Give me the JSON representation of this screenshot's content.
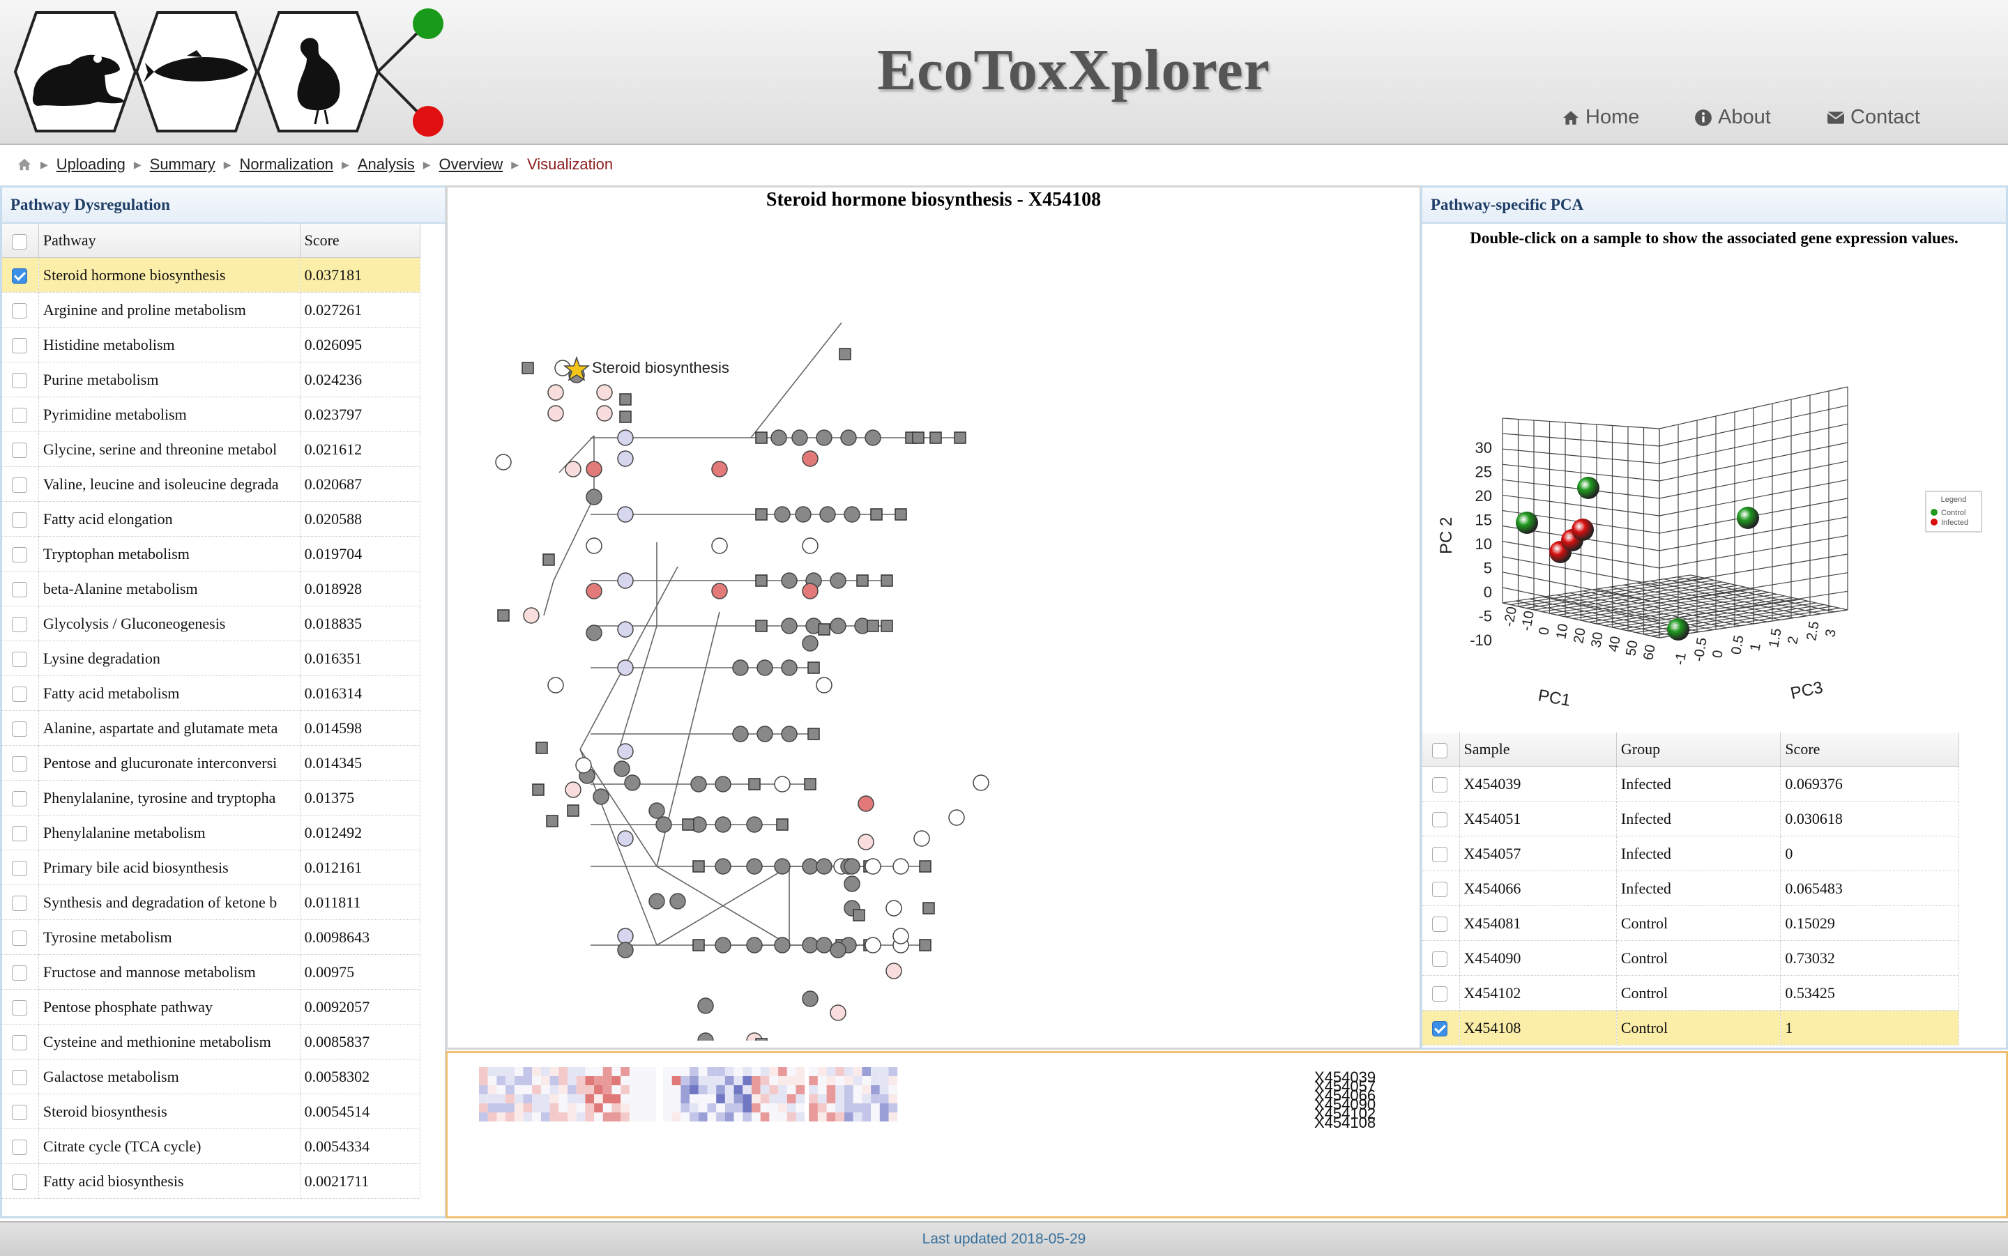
{
  "app": {
    "title": "EcoToxXplorer"
  },
  "nav": {
    "home": "Home",
    "about": "About",
    "contact": "Contact"
  },
  "breadcrumbs": [
    "Uploading",
    "Summary",
    "Normalization",
    "Analysis",
    "Overview",
    "Visualization"
  ],
  "pathway_panel": {
    "title": "Pathway Dysregulation",
    "columns": [
      "Pathway",
      "Score"
    ],
    "rows": [
      {
        "name": "Steroid hormone biosynthesis",
        "score": "0.037181",
        "selected": true
      },
      {
        "name": "Arginine and proline metabolism",
        "score": "0.027261"
      },
      {
        "name": "Histidine metabolism",
        "score": "0.026095"
      },
      {
        "name": "Purine metabolism",
        "score": "0.024236"
      },
      {
        "name": "Pyrimidine metabolism",
        "score": "0.023797"
      },
      {
        "name": "Glycine, serine and threonine metabol",
        "score": "0.021612"
      },
      {
        "name": "Valine, leucine and isoleucine degrada",
        "score": "0.020687"
      },
      {
        "name": "Fatty acid elongation",
        "score": "0.020588"
      },
      {
        "name": "Tryptophan metabolism",
        "score": "0.019704"
      },
      {
        "name": "beta-Alanine metabolism",
        "score": "0.018928"
      },
      {
        "name": "Glycolysis / Gluconeogenesis",
        "score": "0.018835"
      },
      {
        "name": "Lysine degradation",
        "score": "0.016351"
      },
      {
        "name": "Fatty acid metabolism",
        "score": "0.016314"
      },
      {
        "name": "Alanine, aspartate and glutamate meta",
        "score": "0.014598"
      },
      {
        "name": "Pentose and glucuronate interconversi",
        "score": "0.014345"
      },
      {
        "name": "Phenylalanine, tyrosine and tryptopha",
        "score": "0.01375"
      },
      {
        "name": "Phenylalanine metabolism",
        "score": "0.012492"
      },
      {
        "name": "Primary bile acid biosynthesis",
        "score": "0.012161"
      },
      {
        "name": "Synthesis and degradation of ketone b",
        "score": "0.011811"
      },
      {
        "name": "Tyrosine metabolism",
        "score": "0.0098643"
      },
      {
        "name": "Fructose and mannose metabolism",
        "score": "0.00975"
      },
      {
        "name": "Pentose phosphate pathway",
        "score": "0.0092057"
      },
      {
        "name": "Cysteine and methionine metabolism",
        "score": "0.0085837"
      },
      {
        "name": "Galactose metabolism",
        "score": "0.0058302"
      },
      {
        "name": "Steroid biosynthesis",
        "score": "0.0054514"
      },
      {
        "name": "Citrate cycle (TCA cycle)",
        "score": "0.0054334"
      },
      {
        "name": "Fatty acid biosynthesis",
        "score": "0.0021711"
      }
    ]
  },
  "network": {
    "title": "Steroid hormone biosynthesis - X454108",
    "annotation": "Steroid biosynthesis"
  },
  "pca": {
    "title": "Pathway-specific PCA",
    "hint": "Double-click on a sample to show the associated gene expression values.",
    "axis_labels": {
      "x": "PC1",
      "y": "PC 2",
      "z": "PC3"
    },
    "ticks_pc2": [
      "30",
      "25",
      "20",
      "15",
      "10",
      "5",
      "0",
      "-5",
      "-10"
    ],
    "ticks_pc1": [
      "-20",
      "-10",
      "0",
      "10",
      "20",
      "30",
      "40",
      "50",
      "60"
    ],
    "ticks_pc3": [
      "-1",
      "-0.5",
      "0",
      "0.5",
      "1",
      "1.5",
      "2",
      "2.5",
      "3"
    ],
    "legend": {
      "title": "Legend",
      "items": [
        "Control",
        "Infected"
      ]
    },
    "colors": {
      "control": "#1f9a1f",
      "infected": "#d81010"
    }
  },
  "sample_table": {
    "columns": [
      "Sample",
      "Group",
      "Score"
    ],
    "rows": [
      {
        "sample": "X454039",
        "group": "Infected",
        "score": "0.069376"
      },
      {
        "sample": "X454051",
        "group": "Infected",
        "score": "0.030618"
      },
      {
        "sample": "X454057",
        "group": "Infected",
        "score": "0"
      },
      {
        "sample": "X454066",
        "group": "Infected",
        "score": "0.065483"
      },
      {
        "sample": "X454081",
        "group": "Control",
        "score": "0.15029"
      },
      {
        "sample": "X454090",
        "group": "Control",
        "score": "0.73032"
      },
      {
        "sample": "X454102",
        "group": "Control",
        "score": "0.53425"
      },
      {
        "sample": "X454108",
        "group": "Control",
        "score": "1",
        "selected": true
      }
    ]
  },
  "heatmap": {
    "row_labels": [
      "X454039",
      "X454057",
      "X454066",
      "X454090",
      "X454102",
      "X454108"
    ]
  },
  "footer": {
    "text": "Last updated 2018-05-29"
  }
}
